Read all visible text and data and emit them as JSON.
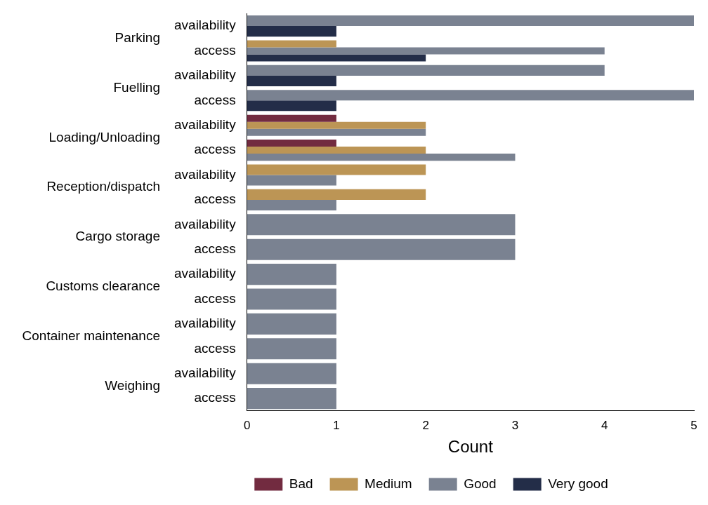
{
  "chart_data": {
    "type": "bar",
    "orientation": "horizontal",
    "xlabel": "Count",
    "categories": [
      "availability",
      "access",
      "availability",
      "access",
      "availability",
      "access",
      "availability",
      "access",
      "availability",
      "access",
      "availability",
      "access",
      "availability",
      "access",
      "availability",
      "access"
    ],
    "annotations": [
      "Parking",
      "Fuelling",
      "Loading/Unloading",
      "Reception/dispatch",
      "Cargo storage",
      "Customs clearance",
      "Container maintenance",
      "Weighing"
    ],
    "series": [
      {
        "name": "Bad",
        "color": "#722b40",
        "values": [
          null,
          null,
          null,
          null,
          1,
          1,
          null,
          null,
          null,
          null,
          null,
          null,
          null,
          null,
          null,
          null
        ]
      },
      {
        "name": "Medium",
        "color": "#bc9555",
        "values": [
          null,
          1,
          null,
          null,
          2,
          2,
          2,
          2,
          null,
          null,
          null,
          null,
          null,
          null,
          null,
          null
        ]
      },
      {
        "name": "Good",
        "color": "#7a8291",
        "values": [
          5,
          4,
          4,
          5,
          2,
          3,
          1,
          1,
          3,
          3,
          1,
          1,
          1,
          1,
          1,
          1
        ]
      },
      {
        "name": "Very good",
        "color": "#232d48",
        "values": [
          1,
          2,
          1,
          1,
          null,
          null,
          null,
          null,
          null,
          null,
          null,
          null,
          null,
          null,
          null,
          null
        ]
      }
    ],
    "xlim": [
      0,
      5
    ],
    "xticks": [
      0,
      1,
      2,
      3,
      4,
      5
    ],
    "grid": false,
    "legend": "bottom"
  }
}
